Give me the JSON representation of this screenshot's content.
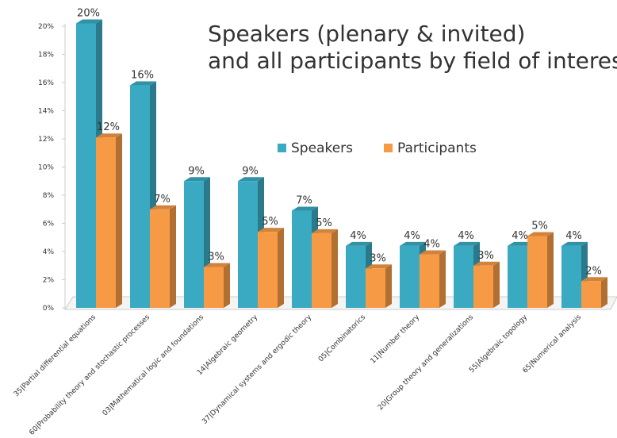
{
  "chart_data": {
    "type": "bar3d",
    "title_lines": [
      "Speakers (plenary & invited)",
      "and all participants by field of interest"
    ],
    "categories": [
      "35|Partial differential equations",
      "60|Probability theory and stochastic processes",
      "03|Mathematical logic and foundations",
      "14|Algebraic geometry",
      "37|Dynamical systems and ergodic theory",
      "05|Combinatorics",
      "11|Number theory",
      "20|Group theory and generalizations",
      "55|Algebraic topology",
      "65|Numerical analysis"
    ],
    "series": [
      {
        "name": "Speakers",
        "color": "#3aaac3",
        "values": [
          20.2,
          15.8,
          9.0,
          9.0,
          6.9,
          4.4,
          4.4,
          4.4,
          4.4,
          4.4
        ],
        "value_labels": [
          "20%",
          "16%",
          "9%",
          "9%",
          "7%",
          "4%",
          "4%",
          "4%",
          "4%",
          "4%"
        ]
      },
      {
        "name": "Participants",
        "color": "#f79a45",
        "values": [
          12.1,
          7.0,
          2.9,
          5.4,
          5.3,
          2.8,
          3.8,
          3.0,
          5.1,
          1.9
        ],
        "value_labels": [
          "12%",
          "7%",
          "3%",
          "5%",
          "5%",
          "3%",
          "4%",
          "3%",
          "5%",
          "2%"
        ]
      }
    ],
    "ylim": [
      0,
      20
    ],
    "yticks": [
      {
        "value": 0,
        "label": "0%"
      },
      {
        "value": 2,
        "label": "2%"
      },
      {
        "value": 4,
        "label": "4%"
      },
      {
        "value": 6,
        "label": "6%"
      },
      {
        "value": 8,
        "label": "8%"
      },
      {
        "value": 10,
        "label": "10%"
      },
      {
        "value": 12,
        "label": "12%"
      },
      {
        "value": 14,
        "label": "14%"
      },
      {
        "value": 16,
        "label": "16%"
      },
      {
        "value": 18,
        "label": "18%"
      },
      {
        "value": 20,
        "label": "20%"
      }
    ]
  }
}
